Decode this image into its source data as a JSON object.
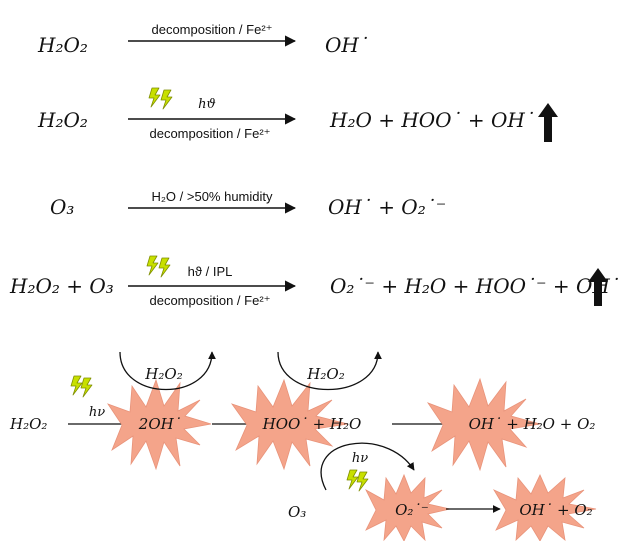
{
  "colors": {
    "burst": "#f4a48a",
    "bolt": "#c8e000",
    "bolt_outline": "#7f8f00",
    "ink": "#111111"
  },
  "icons": [
    "lightning-icon",
    "up-arrow-icon",
    "burst-shape"
  ],
  "reactions": [
    {
      "reactant": "H₂O₂",
      "label_above": "decomposition / Fe²⁺",
      "label_below": "",
      "product": "OH˙",
      "has_light": false,
      "increase_arrow": false
    },
    {
      "reactant": "H₂O₂",
      "label_above": "hϑ",
      "label_below": "decomposition / Fe²⁺",
      "product": "H₂O + HOO˙ + OH˙",
      "has_light": true,
      "increase_arrow": true
    },
    {
      "reactant": "O₃",
      "label_above": "H₂O / >50% humidity",
      "label_below": "",
      "product": "OH˙ + O₂˙⁻",
      "has_light": false,
      "increase_arrow": false
    },
    {
      "reactant": "H₂O₂ + O₃",
      "label_above": "hϑ / IPL",
      "label_below": "decomposition / Fe²⁺",
      "product": "O₂˙⁻ + H₂O + HOO˙⁻ + OH˙",
      "has_light": true,
      "increase_arrow": true
    }
  ],
  "scheme": {
    "start": "H₂O₂",
    "step1_light": "hν",
    "burst1": "2OH˙",
    "loop1_reagent": "H₂O₂",
    "burst2": "HOO˙ + H₂O",
    "loop2_reagent": "H₂O₂",
    "burst3": "OH˙ + H₂O + O₂",
    "ozone": "O₃",
    "ozone_light": "hν",
    "burst4": "O₂˙⁻",
    "burst5": "OH˙ + O₂"
  }
}
